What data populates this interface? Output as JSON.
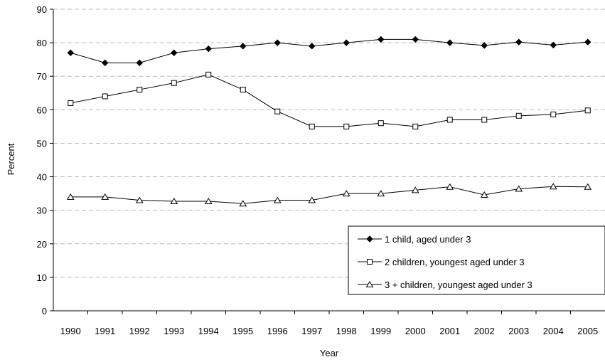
{
  "chart_data": {
    "type": "line",
    "title": "",
    "xlabel": "Year",
    "ylabel": "Percent",
    "ylim": [
      0,
      90
    ],
    "yticks": [
      0,
      10,
      20,
      30,
      40,
      50,
      60,
      70,
      80,
      90
    ],
    "grid": "horizontal dashed",
    "legend_position": "bottom-right",
    "categories": [
      "1990",
      "1991",
      "1992",
      "1993",
      "1994",
      "1995",
      "1996",
      "1997",
      "1998",
      "1999",
      "2000",
      "2001",
      "2002",
      "2003",
      "2004",
      "2005"
    ],
    "series": [
      {
        "name": "1 child, aged under 3",
        "marker": "filled-diamond",
        "values": [
          77,
          74,
          74,
          77,
          78.2,
          79,
          80,
          79,
          80,
          81,
          81,
          80,
          79.2,
          80.2,
          79.3,
          80.2
        ]
      },
      {
        "name": "2 children, youngest aged under 3",
        "marker": "open-square",
        "values": [
          62,
          64,
          66,
          68,
          70.5,
          66,
          59.5,
          55,
          55,
          56,
          55,
          57,
          57,
          58.2,
          58.6,
          59.8
        ]
      },
      {
        "name": "3 + children, youngest aged under 3",
        "marker": "open-triangle",
        "values": [
          34,
          34,
          33,
          32.7,
          32.7,
          32,
          33,
          33,
          35,
          35,
          36,
          37,
          34.6,
          36.4,
          37.1,
          37
        ]
      }
    ],
    "colors": {
      "line": "#000000",
      "grid": "#bbbbbb"
    }
  }
}
